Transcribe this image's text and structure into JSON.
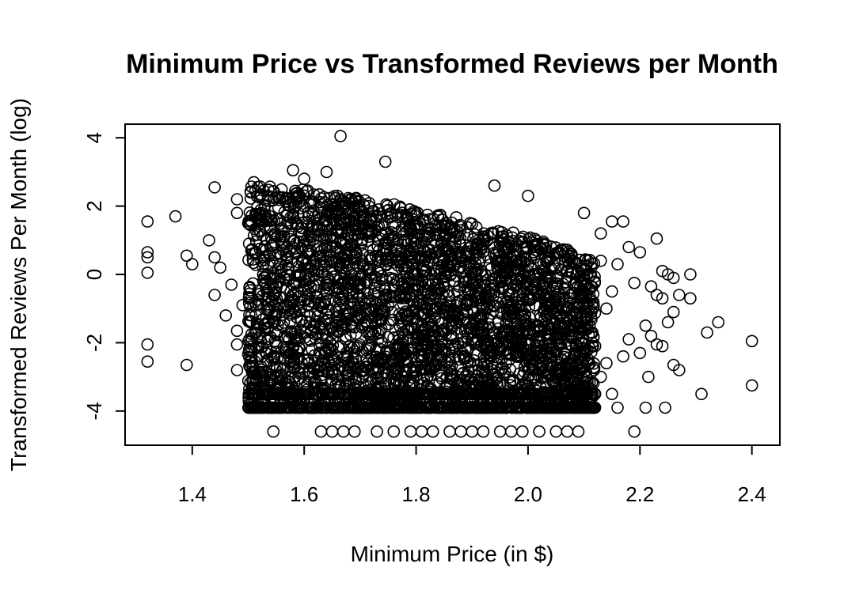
{
  "chart_data": {
    "type": "scatter",
    "title": "Minimum Price vs Transformed Reviews per Month",
    "xlabel": "Minimum Price (in $)",
    "ylabel": "Transformed Reviews Per Month (log)",
    "xlim": [
      1.28,
      2.45
    ],
    "ylim": [
      -5.0,
      4.4
    ],
    "x_ticks": [
      1.4,
      1.6,
      1.8,
      2.0,
      2.2,
      2.4
    ],
    "x_tick_labels": [
      "1.4",
      "1.6",
      "1.8",
      "2.0",
      "2.2",
      "2.4"
    ],
    "y_ticks": [
      -4,
      -2,
      0,
      2,
      4
    ],
    "y_tick_labels": [
      "-4",
      "-2",
      "0",
      "2",
      "4"
    ],
    "grid": false,
    "marker": "open-circle",
    "dense_region": {
      "description_free": true,
      "x_range": [
        1.5,
        2.12
      ],
      "y_low": -3.9,
      "y_high_at_left": 2.6,
      "y_high_at_right": 0.5
    },
    "points": [
      {
        "x": 1.32,
        "y": 1.55
      },
      {
        "x": 1.32,
        "y": 0.65
      },
      {
        "x": 1.32,
        "y": 0.5
      },
      {
        "x": 1.32,
        "y": 0.05
      },
      {
        "x": 1.32,
        "y": -2.05
      },
      {
        "x": 1.32,
        "y": -2.55
      },
      {
        "x": 1.37,
        "y": 1.7
      },
      {
        "x": 1.39,
        "y": 0.55
      },
      {
        "x": 1.4,
        "y": 0.3
      },
      {
        "x": 1.39,
        "y": -2.65
      },
      {
        "x": 1.44,
        "y": 2.55
      },
      {
        "x": 1.43,
        "y": 1.0
      },
      {
        "x": 1.44,
        "y": 0.5
      },
      {
        "x": 1.44,
        "y": -0.6
      },
      {
        "x": 1.45,
        "y": 0.2
      },
      {
        "x": 1.46,
        "y": -1.2
      },
      {
        "x": 1.47,
        "y": -0.3
      },
      {
        "x": 1.48,
        "y": 2.2
      },
      {
        "x": 1.48,
        "y": 1.8
      },
      {
        "x": 1.48,
        "y": -1.65
      },
      {
        "x": 1.48,
        "y": -2.05
      },
      {
        "x": 1.48,
        "y": -2.8
      },
      {
        "x": 1.49,
        "y": -0.9
      },
      {
        "x": 1.5,
        "y": 1.5
      },
      {
        "x": 1.51,
        "y": -3.9
      },
      {
        "x": 1.52,
        "y": -3.9
      },
      {
        "x": 1.53,
        "y": -3.5
      },
      {
        "x": 1.51,
        "y": 2.7
      },
      {
        "x": 1.54,
        "y": -3.0
      },
      {
        "x": 1.545,
        "y": -4.6
      },
      {
        "x": 1.58,
        "y": 3.05
      },
      {
        "x": 1.6,
        "y": 2.8
      },
      {
        "x": 1.64,
        "y": 3.0
      },
      {
        "x": 1.665,
        "y": 4.05
      },
      {
        "x": 1.745,
        "y": 3.3
      },
      {
        "x": 1.94,
        "y": 2.6
      },
      {
        "x": 2.0,
        "y": 2.3
      },
      {
        "x": 1.63,
        "y": -4.6
      },
      {
        "x": 1.65,
        "y": -4.6
      },
      {
        "x": 1.67,
        "y": -4.6
      },
      {
        "x": 1.69,
        "y": -4.6
      },
      {
        "x": 1.73,
        "y": -4.6
      },
      {
        "x": 1.76,
        "y": -4.6
      },
      {
        "x": 1.79,
        "y": -4.6
      },
      {
        "x": 1.81,
        "y": -4.6
      },
      {
        "x": 1.83,
        "y": -4.6
      },
      {
        "x": 1.86,
        "y": -4.6
      },
      {
        "x": 1.88,
        "y": -4.6
      },
      {
        "x": 1.9,
        "y": -4.6
      },
      {
        "x": 1.92,
        "y": -4.6
      },
      {
        "x": 1.95,
        "y": -4.6
      },
      {
        "x": 1.97,
        "y": -4.6
      },
      {
        "x": 1.99,
        "y": -4.6
      },
      {
        "x": 2.02,
        "y": -4.6
      },
      {
        "x": 2.05,
        "y": -4.6
      },
      {
        "x": 2.07,
        "y": -4.6
      },
      {
        "x": 2.09,
        "y": -4.6
      },
      {
        "x": 2.19,
        "y": -4.6
      },
      {
        "x": 2.1,
        "y": 1.8
      },
      {
        "x": 2.13,
        "y": 1.2
      },
      {
        "x": 2.15,
        "y": 1.55
      },
      {
        "x": 2.17,
        "y": 1.55
      },
      {
        "x": 2.16,
        "y": 0.3
      },
      {
        "x": 2.18,
        "y": 0.8
      },
      {
        "x": 2.2,
        "y": 0.65
      },
      {
        "x": 2.19,
        "y": -0.25
      },
      {
        "x": 2.23,
        "y": 1.05
      },
      {
        "x": 2.24,
        "y": 0.1
      },
      {
        "x": 2.25,
        "y": 0.0
      },
      {
        "x": 2.26,
        "y": -0.1
      },
      {
        "x": 2.22,
        "y": -0.35
      },
      {
        "x": 2.23,
        "y": -0.6
      },
      {
        "x": 2.24,
        "y": -0.7
      },
      {
        "x": 2.27,
        "y": -0.6
      },
      {
        "x": 2.29,
        "y": 0.0
      },
      {
        "x": 2.29,
        "y": -0.7
      },
      {
        "x": 2.26,
        "y": -1.1
      },
      {
        "x": 2.25,
        "y": -1.4
      },
      {
        "x": 2.21,
        "y": -1.5
      },
      {
        "x": 2.22,
        "y": -1.8
      },
      {
        "x": 2.23,
        "y": -2.05
      },
      {
        "x": 2.24,
        "y": -2.1
      },
      {
        "x": 2.2,
        "y": -2.3
      },
      {
        "x": 2.18,
        "y": -1.9
      },
      {
        "x": 2.17,
        "y": -2.4
      },
      {
        "x": 2.26,
        "y": -2.65
      },
      {
        "x": 2.27,
        "y": -2.8
      },
      {
        "x": 2.215,
        "y": -3.0
      },
      {
        "x": 2.21,
        "y": -3.9
      },
      {
        "x": 2.245,
        "y": -3.9
      },
      {
        "x": 2.31,
        "y": -3.5
      },
      {
        "x": 2.32,
        "y": -1.7
      },
      {
        "x": 2.34,
        "y": -1.4
      },
      {
        "x": 2.4,
        "y": -1.95
      },
      {
        "x": 2.4,
        "y": -3.25
      },
      {
        "x": 2.16,
        "y": -3.9
      },
      {
        "x": 2.15,
        "y": -3.5
      },
      {
        "x": 2.13,
        "y": -3.0
      },
      {
        "x": 2.14,
        "y": -2.6
      },
      {
        "x": 2.12,
        "y": -2.1
      },
      {
        "x": 2.11,
        "y": -1.5
      },
      {
        "x": 2.14,
        "y": -1.0
      },
      {
        "x": 2.15,
        "y": -0.5
      },
      {
        "x": 2.13,
        "y": 0.4
      }
    ]
  }
}
